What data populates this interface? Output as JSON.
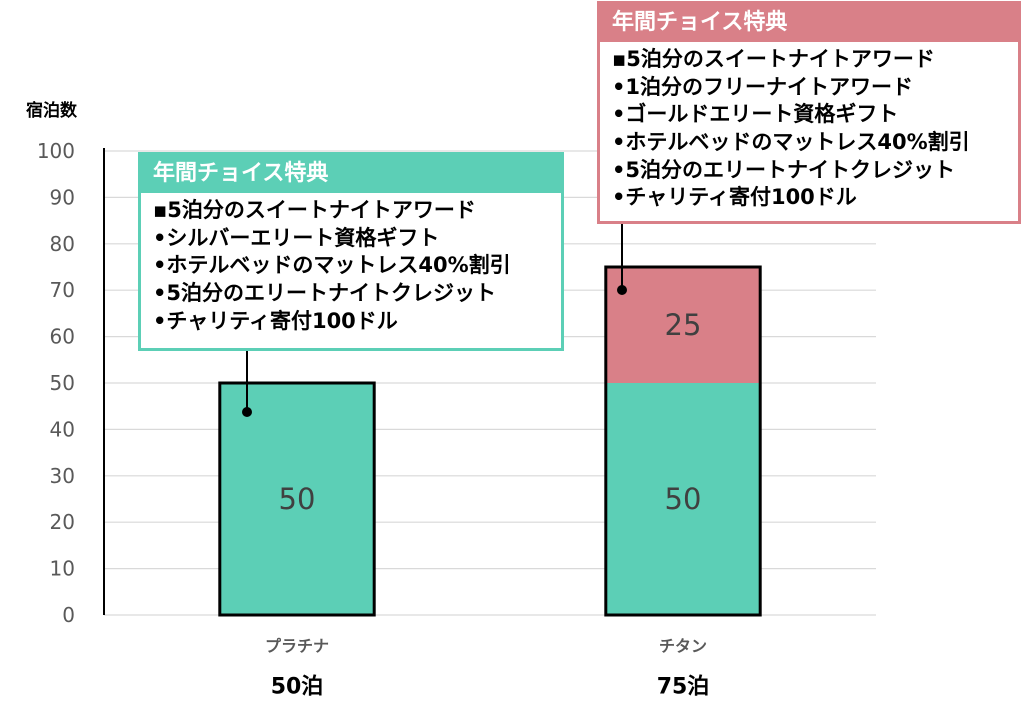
{
  "chart_data": {
    "type": "bar",
    "stacked": true,
    "categories": [
      "プラチナ",
      "チタン"
    ],
    "category_sublabels": [
      "50泊",
      "75泊"
    ],
    "series": [
      {
        "values": [
          50,
          50
        ],
        "color": "#5CCFB6"
      },
      {
        "values": [
          0,
          25
        ],
        "color": "#D98088"
      }
    ],
    "ylabel": "宿泊数",
    "ylim": [
      0,
      100
    ],
    "yticks": [
      0,
      10,
      20,
      30,
      40,
      50,
      60,
      70,
      80,
      90,
      100
    ],
    "grid": true,
    "grid_color": "#D9D9D9",
    "data_labels": true
  },
  "annotations": [
    {
      "title": "年間チョイス特典",
      "color": "#5CCFB6",
      "items": [
        "▪5泊分のスイートナイトアワード",
        "•シルバーエリート資格ギフト",
        "•ホテルベッドのマットレス40%割引",
        "•5泊分のエリートナイトクレジット",
        "•チャリティ寄付100ドル"
      ]
    },
    {
      "title": "年間チョイス特典",
      "color": "#D98088",
      "items": [
        "▪5泊分のスイートナイトアワード",
        "•1泊分のフリーナイトアワード",
        "•ゴールドエリート資格ギフト",
        "•ホテルベッドのマットレス40%割引",
        "•5泊分のエリートナイトクレジット",
        "•チャリティ寄付100ドル"
      ]
    }
  ]
}
